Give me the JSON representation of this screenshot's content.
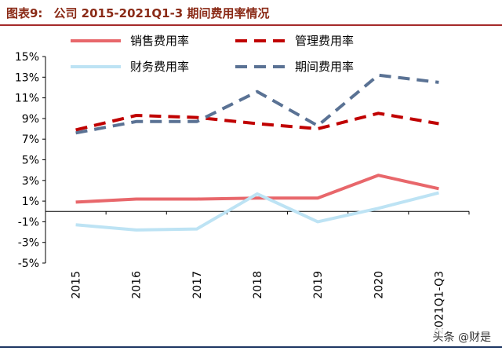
{
  "header": {
    "figure_label": "图表9:",
    "title": "公司 2015-2021Q1-3 期间费用率情况"
  },
  "watermark": "头条 @财是",
  "chart_data": {
    "type": "line",
    "title": "公司 2015-2021Q1-3 期间费用率情况",
    "categories": [
      "2015",
      "2016",
      "2017",
      "2018",
      "2019",
      "2020",
      "2021Q1-Q3"
    ],
    "ylim": [
      -5,
      15
    ],
    "yticks": [
      "15%",
      "13%",
      "11%",
      "9%",
      "7%",
      "5%",
      "3%",
      "1%",
      "-1%",
      "-3%",
      "-5%"
    ],
    "ytick_values": [
      15,
      13,
      11,
      9,
      7,
      5,
      3,
      1,
      -1,
      -3,
      -5
    ],
    "series": [
      {
        "name": "销售费用率",
        "color": "#e8676b",
        "dash": "solid",
        "values": [
          0.9,
          1.2,
          1.2,
          1.3,
          1.3,
          3.5,
          2.2
        ]
      },
      {
        "name": "管理费用率",
        "color": "#c00000",
        "dash": "dash",
        "values": [
          7.9,
          9.3,
          9.1,
          8.5,
          8.0,
          9.5,
          8.5
        ]
      },
      {
        "name": "财务费用率",
        "color": "#bde3f4",
        "dash": "solid",
        "values": [
          -1.3,
          -1.8,
          -1.7,
          1.7,
          -1.0,
          0.3,
          1.8
        ]
      },
      {
        "name": "期间费用率",
        "color": "#5a7294",
        "dash": "dash",
        "values": [
          7.6,
          8.7,
          8.7,
          11.6,
          8.3,
          13.2,
          12.5
        ]
      }
    ],
    "grid": false,
    "legend_position": "top"
  }
}
